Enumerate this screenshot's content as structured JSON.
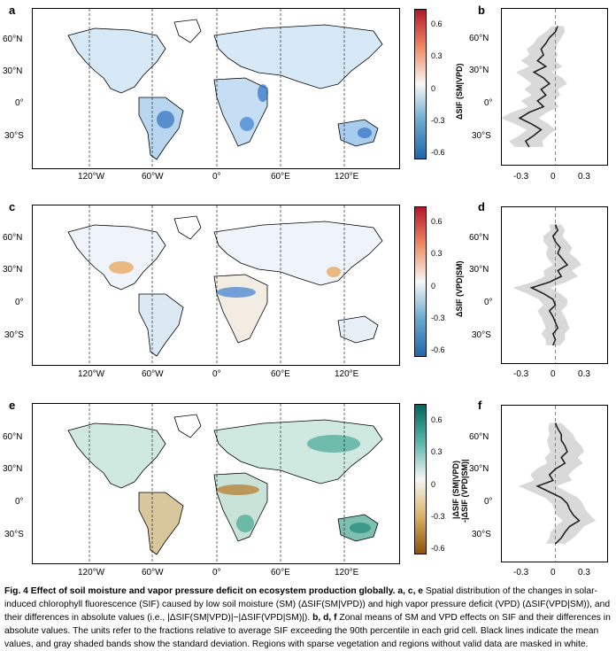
{
  "panels": {
    "a": "a",
    "b": "b",
    "c": "c",
    "d": "d",
    "e": "e",
    "f": "f"
  },
  "map_axes": {
    "lat_labels": [
      "60°N",
      "30°N",
      "0°",
      "30°S"
    ],
    "lon_labels": [
      "120°W",
      "60°W",
      "0°",
      "60°E",
      "120°E"
    ]
  },
  "colorbars": [
    {
      "title": "ΔSIF (SM|VPD)",
      "ticks": [
        "0.6",
        "0.3",
        "0",
        "-0.3",
        "-0.6"
      ],
      "colors": {
        "top": "#b2182b",
        "mid": "#f7f7f7",
        "bottom": "#2166ac"
      }
    },
    {
      "title": "ΔSIF (VPD|SM)",
      "ticks": [
        "0.6",
        "0.3",
        "0",
        "-0.3",
        "-0.6"
      ],
      "colors": {
        "top": "#b2182b",
        "mid": "#f7f7f7",
        "bottom": "#2166ac"
      }
    },
    {
      "title_line1": "|ΔSIF (SM|VPD)",
      "title_line2": "-|ΔSIF (VPD|SM)|",
      "ticks": [
        "0.6",
        "0.3",
        "0",
        "-0.3",
        "-0.6"
      ],
      "colors": {
        "top": "#01665e",
        "mid": "#f5f5f5",
        "bottom": "#8c510a"
      }
    }
  ],
  "zonal_axes": {
    "lat_labels": [
      "60°N",
      "30°N",
      "0°",
      "30°S"
    ],
    "x_ticks": [
      "-0.3",
      "0",
      "0.3"
    ]
  },
  "chart_data": [
    {
      "type": "line",
      "panel": "b",
      "xlim": [
        -0.45,
        0.45
      ],
      "ylim": [
        -57,
        80
      ],
      "y_lat": [
        65,
        60,
        55,
        50,
        45,
        40,
        35,
        30,
        25,
        20,
        15,
        10,
        5,
        0,
        -5,
        -10,
        -15,
        -20,
        -25,
        -30,
        -35,
        -40
      ],
      "mean": [
        0.02,
        0.0,
        -0.05,
        -0.08,
        -0.12,
        -0.1,
        -0.15,
        -0.08,
        -0.18,
        -0.1,
        -0.05,
        -0.12,
        -0.08,
        -0.15,
        -0.1,
        -0.22,
        -0.3,
        -0.2,
        -0.12,
        -0.18,
        -0.25,
        -0.22
      ],
      "sd": [
        0.05,
        0.08,
        0.1,
        0.1,
        0.12,
        0.12,
        0.14,
        0.14,
        0.15,
        0.16,
        0.15,
        0.14,
        0.12,
        0.14,
        0.13,
        0.15,
        0.16,
        0.14,
        0.12,
        0.12,
        0.14,
        0.12
      ],
      "reference_line_x": 0
    },
    {
      "type": "line",
      "panel": "d",
      "xlim": [
        -0.45,
        0.45
      ],
      "ylim": [
        -57,
        80
      ],
      "y_lat": [
        65,
        60,
        55,
        50,
        45,
        40,
        35,
        30,
        25,
        20,
        15,
        10,
        5,
        0,
        -5,
        -10,
        -15,
        -20,
        -25,
        -30,
        -35,
        -40
      ],
      "mean": [
        0.0,
        0.02,
        -0.02,
        0.0,
        0.04,
        0.02,
        0.06,
        0.1,
        0.02,
        0.05,
        -0.05,
        -0.2,
        -0.1,
        -0.02,
        0.0,
        -0.05,
        -0.02,
        0.0,
        0.02,
        -0.02,
        0.0,
        -0.02
      ],
      "sd": [
        0.05,
        0.06,
        0.08,
        0.1,
        0.1,
        0.1,
        0.12,
        0.12,
        0.12,
        0.14,
        0.14,
        0.16,
        0.14,
        0.12,
        0.1,
        0.1,
        0.1,
        0.1,
        0.1,
        0.1,
        0.08,
        0.06
      ],
      "reference_line_x": 0
    },
    {
      "type": "line",
      "panel": "f",
      "xlim": [
        -0.45,
        0.45
      ],
      "ylim": [
        -57,
        80
      ],
      "y_lat": [
        65,
        60,
        55,
        50,
        45,
        40,
        35,
        30,
        25,
        20,
        15,
        10,
        5,
        0,
        -5,
        -10,
        -15,
        -20,
        -25,
        -30,
        -35,
        -40
      ],
      "mean": [
        0.0,
        0.02,
        0.05,
        0.05,
        0.08,
        0.1,
        0.05,
        0.08,
        0.0,
        -0.05,
        -0.02,
        -0.15,
        -0.05,
        0.05,
        0.1,
        0.12,
        0.15,
        0.2,
        0.12,
        0.08,
        0.05,
        0.0
      ],
      "sd": [
        0.05,
        0.08,
        0.1,
        0.12,
        0.14,
        0.14,
        0.14,
        0.15,
        0.16,
        0.16,
        0.16,
        0.16,
        0.15,
        0.14,
        0.13,
        0.13,
        0.14,
        0.14,
        0.12,
        0.12,
        0.1,
        0.08
      ],
      "reference_line_x": 0
    }
  ],
  "caption": {
    "bold_lead": "Fig. 4 Effect of soil moisture and vapor pressure deficit on ecosystem production globally.",
    "ace": "a, c, e",
    "part1": "Spatial distribution of the changes in solar-induced chlorophyll fluorescence (SIF) caused by low soil moisture (SM) (ΔSIF(SM|VPD)) and high vapor pressure deficit (VPD) (ΔSIF(VPD|SM)), and their differences in absolute values (i.e., |ΔSIF(SM|VPD)|−|ΔSIF(VPD|SM)|).",
    "bdf": "b, d, f",
    "part2": "Zonal means of SM and VPD effects on SIF and their differences in absolute values. The units refer to the fractions relative to average SIF exceeding the 90th percentile in each grid cell. Black lines indicate the mean values, and gray shaded bands show the standard deviation. Regions with sparse vegetation and regions without valid data are masked in white."
  }
}
